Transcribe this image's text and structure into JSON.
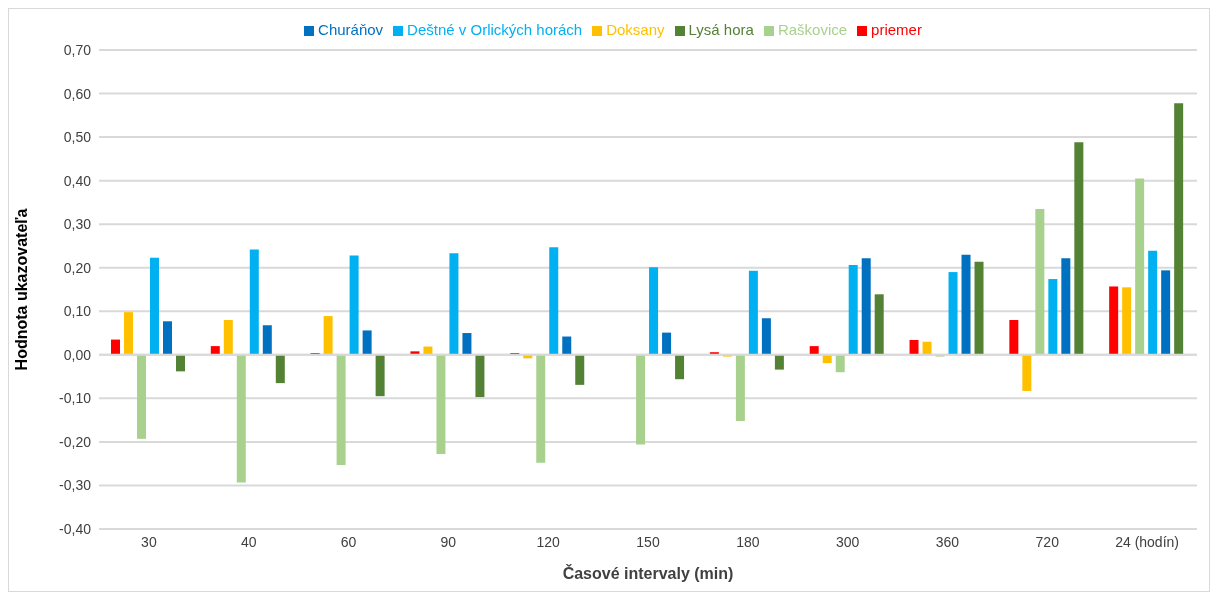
{
  "chart_data": {
    "type": "bar",
    "xlabel": "Časové intervaly (min)",
    "ylabel": "Hodnota ukazovateľa",
    "categories": [
      "30",
      "40",
      "60",
      "90",
      "120",
      "150",
      "180",
      "300",
      "360",
      "720",
      "24 (hodín)"
    ],
    "series": [
      {
        "name": "priemer",
        "color": "#ff0000",
        "values": [
          0.035,
          0.02,
          0.004,
          0.008,
          0.004,
          0,
          0.006,
          0.02,
          0.034,
          0.08,
          0.157
        ]
      },
      {
        "name": "Doksany",
        "color": "#ffc000",
        "values": [
          0.098,
          0.08,
          0.089,
          0.019,
          -0.008,
          0,
          -0.004,
          -0.019,
          0.03,
          -0.083,
          0.155
        ]
      },
      {
        "name": "Raškovice",
        "color": "#a9d18e",
        "values": [
          -0.193,
          -0.293,
          -0.253,
          -0.228,
          -0.248,
          -0.206,
          -0.152,
          -0.04,
          -0.004,
          0.335,
          0.405
        ]
      },
      {
        "name": "Deštné v Orlických horách",
        "color": "#00b0f0",
        "values": [
          0.223,
          0.242,
          0.228,
          0.233,
          0.247,
          0.201,
          0.193,
          0.206,
          0.19,
          0.174,
          0.239
        ]
      },
      {
        "name": "Churáňov",
        "color": "#0070c0",
        "values": [
          0.077,
          0.068,
          0.056,
          0.05,
          0.042,
          0.051,
          0.084,
          0.222,
          0.23,
          0.222,
          0.194
        ]
      },
      {
        "name": "Lysá hora",
        "color": "#548235",
        "values": [
          -0.038,
          -0.065,
          -0.095,
          -0.097,
          -0.069,
          -0.056,
          -0.034,
          0.139,
          0.214,
          0.488,
          0.578
        ]
      }
    ],
    "ylim": [
      -0.4,
      0.7
    ],
    "yticks": [
      {
        "value": -0.4,
        "label": "-0,40"
      },
      {
        "value": -0.3,
        "label": "-0,30"
      },
      {
        "value": -0.2,
        "label": "-0,20"
      },
      {
        "value": -0.1,
        "label": "-0,10"
      },
      {
        "value": 0,
        "label": "0,00"
      },
      {
        "value": 0.1,
        "label": "0,10"
      },
      {
        "value": 0.2,
        "label": "0,20"
      },
      {
        "value": 0.3,
        "label": "0,30"
      },
      {
        "value": 0.4,
        "label": "0,40"
      },
      {
        "value": 0.5,
        "label": "0,50"
      },
      {
        "value": 0.6,
        "label": "0,60"
      },
      {
        "value": 0.7,
        "label": "0,70"
      }
    ],
    "grid": "y",
    "legend": "top"
  }
}
